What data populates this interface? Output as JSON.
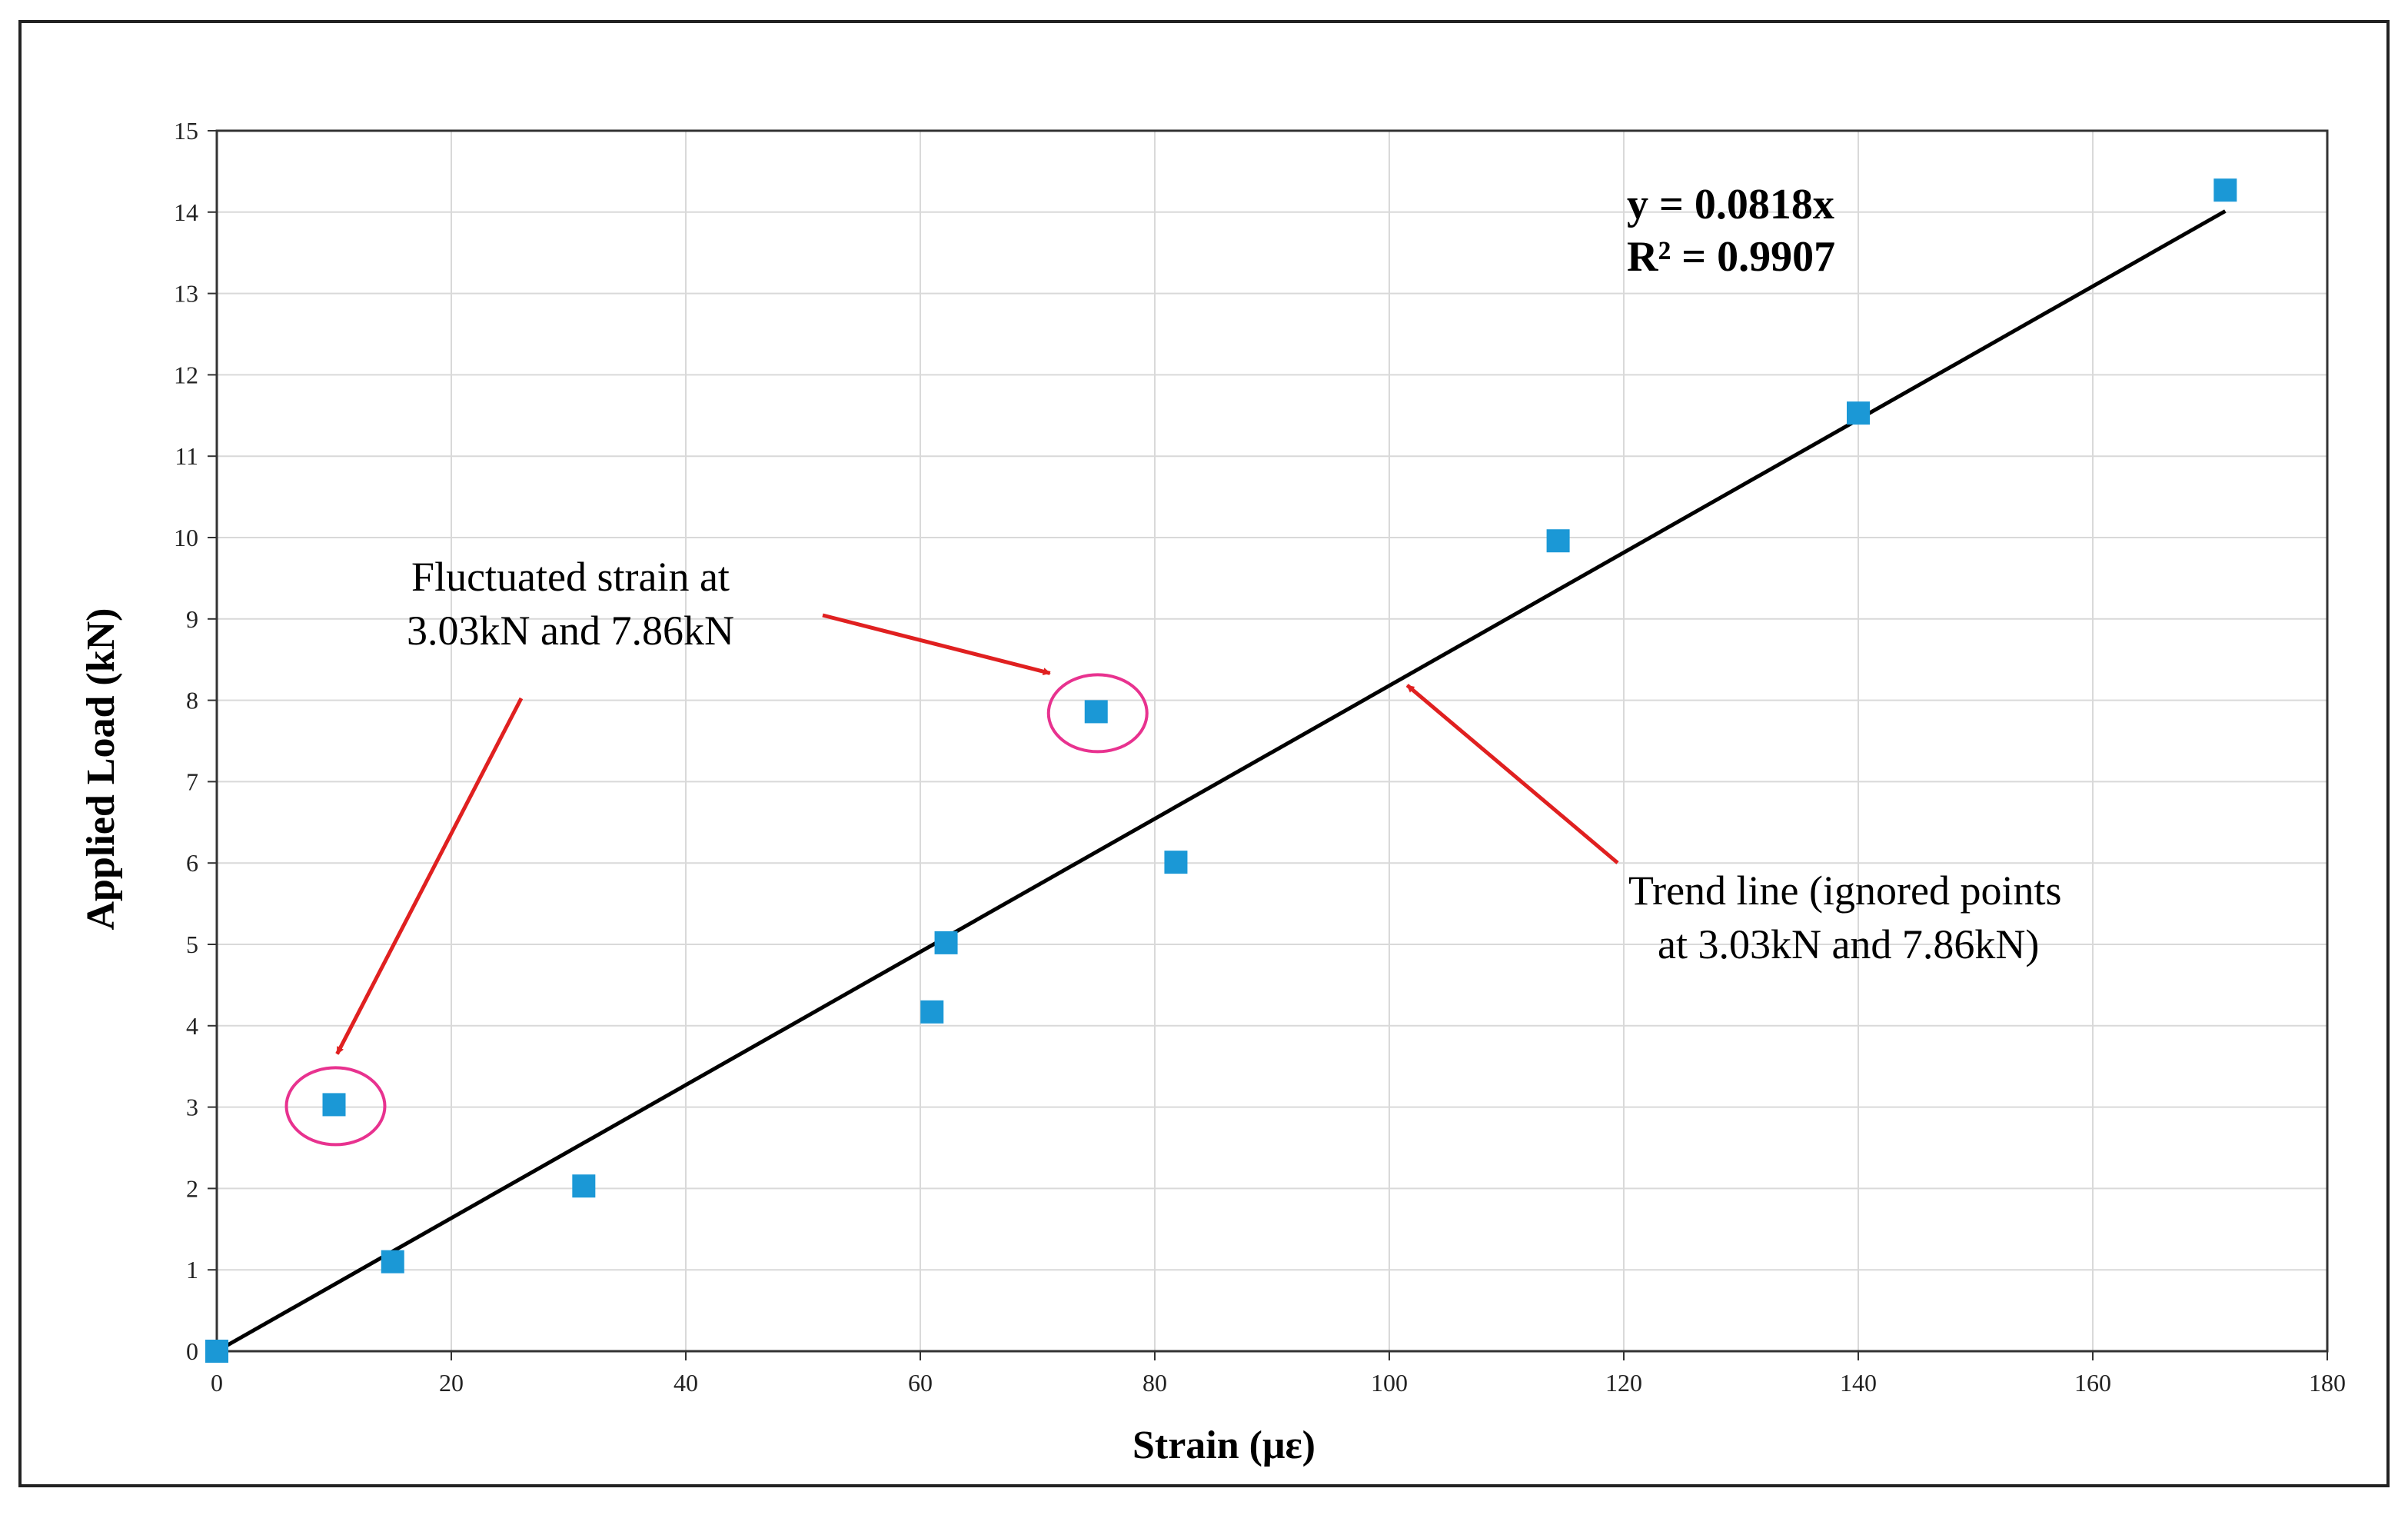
{
  "chart_data": {
    "type": "scatter",
    "xlabel": "Strain (με)",
    "ylabel": "Applied Load (kN)",
    "xlim": [
      0,
      180
    ],
    "ylim": [
      0,
      15
    ],
    "x_ticks": [
      0,
      20,
      40,
      60,
      80,
      100,
      120,
      140,
      160,
      180
    ],
    "y_ticks": [
      0,
      1,
      2,
      3,
      4,
      5,
      6,
      7,
      8,
      9,
      10,
      11,
      12,
      13,
      14,
      15
    ],
    "grid": true,
    "series": [
      {
        "marker": "square",
        "color": "#1b98d6",
        "points": [
          {
            "x": 0,
            "y": 0
          },
          {
            "x": 10,
            "y": 3.03
          },
          {
            "x": 15,
            "y": 1.1
          },
          {
            "x": 31.3,
            "y": 2.03
          },
          {
            "x": 61,
            "y": 4.17
          },
          {
            "x": 62.2,
            "y": 5.02
          },
          {
            "x": 75,
            "y": 7.86
          },
          {
            "x": 81.8,
            "y": 6.01
          },
          {
            "x": 114.4,
            "y": 9.96
          },
          {
            "x": 140,
            "y": 11.53
          },
          {
            "x": 171.3,
            "y": 14.27
          }
        ]
      }
    ],
    "trendline": {
      "slope": 0.0818,
      "x_range": [
        0,
        171.3
      ],
      "color": "#000000",
      "equation": "y = 0.0818x",
      "r_squared": "R² = 0.9907"
    },
    "annotations": {
      "fluctuated": {
        "lines": [
          "Fluctuated strain at",
          "3.03kN and 7.86kN"
        ],
        "circled_points": [
          {
            "x": 10,
            "y": 3.03
          },
          {
            "x": 75,
            "y": 7.86
          }
        ],
        "circle_color": "#e8328f"
      },
      "trend": {
        "lines": [
          "Trend line (ignored points",
          "at 3.03kN and 7.86kN)"
        ],
        "target": {
          "x": 101,
          "y": 8.26
        }
      },
      "arrow_color": "#e02020"
    }
  }
}
